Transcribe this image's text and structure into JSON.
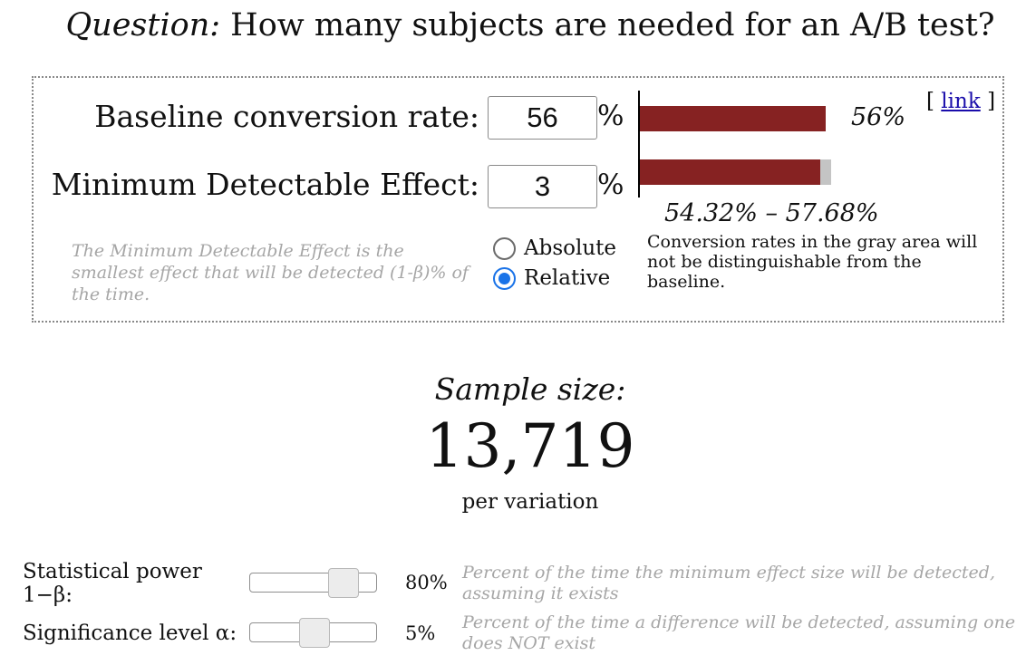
{
  "header": {
    "question_prefix": "Question:",
    "question_text": " How many subjects are needed for an A/B test?"
  },
  "inputs": {
    "baseline": {
      "label": "Baseline conversion rate:",
      "value": "56",
      "unit": "%"
    },
    "mde": {
      "label": "Minimum Detectable Effect:",
      "value": "3",
      "unit": "%"
    }
  },
  "visual": {
    "baseline_label": "56%",
    "baseline_fraction": 0.56,
    "range_low_fraction": 0.5432,
    "range_high_fraction": 0.5768,
    "link_open": "[ ",
    "link_text": "link",
    "link_close": " ]",
    "range_text": "54.32% – 57.68%",
    "gray_note": "Conversion rates in the gray area will not be distinguishable from the baseline.",
    "bar_color": "#862222",
    "gray_color": "#c4c4c4"
  },
  "mde_help": "The Minimum Detectable Effect is the smallest effect that will be detected (1-β)% of the time.",
  "mode": {
    "options": [
      "Absolute",
      "Relative"
    ],
    "selected": "Relative"
  },
  "result": {
    "label": "Sample size:",
    "value": "13,719",
    "unit": "per variation"
  },
  "sliders": {
    "power": {
      "label": "Statistical power 1−β:",
      "value": "80%",
      "level": 0.8,
      "help": "Percent of the time the minimum effect size will be detected, assuming it exists"
    },
    "significance": {
      "label": "Significance level α:",
      "value": "5%",
      "level": 0.05,
      "help": "Percent of the time a difference will be detected, assuming one does NOT exist"
    }
  },
  "colors": {
    "accent": "#1a73e8",
    "link": "#1a0dab",
    "help_text": "#a6a6a6"
  }
}
